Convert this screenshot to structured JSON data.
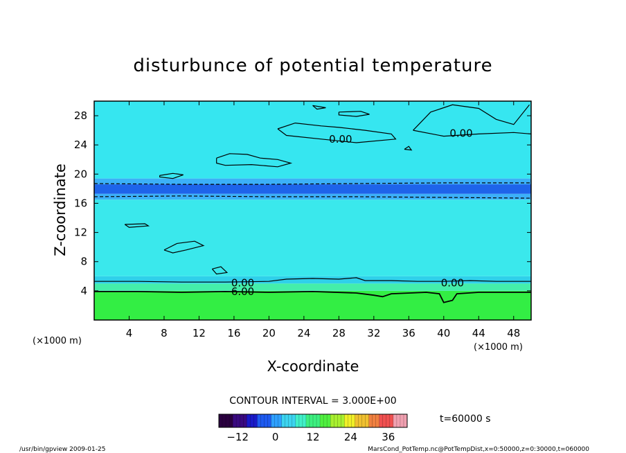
{
  "chart_data": {
    "type": "heatmap",
    "title": "disturbunce of potential temperature",
    "xlabel": "X-coordinate",
    "ylabel": "Z-coordinate",
    "x_unit": "(×1000 m)",
    "y_unit": "(×1000 m)",
    "xlim": [
      0,
      50
    ],
    "ylim": [
      0,
      30
    ],
    "x_ticks": [
      4,
      8,
      12,
      16,
      20,
      24,
      28,
      32,
      36,
      40,
      44,
      48
    ],
    "y_ticks": [
      4,
      8,
      12,
      16,
      20,
      24,
      28
    ],
    "contour_interval_text": "CONTOUR INTERVAL = 3.000E+00",
    "time_label": "t=60000 s",
    "colorbar": {
      "min": -18,
      "max": 42,
      "ticks": [
        -12,
        0,
        12,
        24,
        36
      ],
      "colors": [
        "#2a003f",
        "#3a0a80",
        "#1a1ac8",
        "#1e5af0",
        "#2ea0ff",
        "#3cd4f0",
        "#40f0c8",
        "#3cf080",
        "#50f040",
        "#a8f030",
        "#f0f028",
        "#f0c030",
        "#f08040",
        "#f05050",
        "#f0a0b0"
      ]
    },
    "field_layers": [
      {
        "z_from": 0,
        "z_to": 4,
        "color": "#33ee44"
      },
      {
        "z_from": 4,
        "z_to": 5,
        "color": "#44eeaa"
      },
      {
        "z_from": 5,
        "z_to": 6,
        "color": "#2fd0ea"
      },
      {
        "z_from": 6,
        "z_to": 16.5,
        "color": "#3ae8ec"
      },
      {
        "z_from": 16.5,
        "z_to": 17.3,
        "color": "#3cb0f8"
      },
      {
        "z_from": 17.3,
        "z_to": 18.6,
        "color": "#1e64ea"
      },
      {
        "z_from": 18.6,
        "z_to": 19.4,
        "color": "#3cb0f8"
      },
      {
        "z_from": 19.4,
        "z_to": 30,
        "color": "#36e6f0"
      }
    ],
    "contour_labels": [
      {
        "text": "0.00",
        "x": 28.2,
        "z": 24.8
      },
      {
        "text": "0.00",
        "x": 42.0,
        "z": 25.6
      },
      {
        "text": "0.00",
        "x": 17.0,
        "z": 5.1
      },
      {
        "text": "6.00",
        "x": 17.0,
        "z": 3.9
      },
      {
        "text": "0.00",
        "x": 41.0,
        "z": 5.1
      }
    ],
    "contours": [
      {
        "level": 0,
        "points": [
          [
            21,
            26.2
          ],
          [
            23,
            27
          ],
          [
            26,
            26.6
          ],
          [
            28,
            26.4
          ],
          [
            31,
            26
          ],
          [
            34,
            25.5
          ],
          [
            34.5,
            24.8
          ],
          [
            30,
            24.3
          ],
          [
            26,
            24.8
          ],
          [
            22,
            25.3
          ],
          [
            21,
            26.2
          ]
        ]
      },
      {
        "level": 0,
        "points": [
          [
            36.5,
            26
          ],
          [
            38.5,
            28.5
          ],
          [
            41,
            29.5
          ],
          [
            44,
            29
          ],
          [
            46,
            27.5
          ],
          [
            48,
            26.8
          ],
          [
            49.8,
            29.5
          ]
        ]
      },
      {
        "level": 0,
        "points": [
          [
            36.5,
            26
          ],
          [
            40,
            25.2
          ],
          [
            44,
            25.5
          ],
          [
            48,
            25.7
          ],
          [
            50,
            25.5
          ]
        ]
      },
      {
        "level": 0,
        "points": [
          [
            14,
            22.2
          ],
          [
            15.5,
            22.8
          ],
          [
            17.5,
            22.7
          ],
          [
            19,
            22.2
          ],
          [
            21,
            22
          ],
          [
            22.5,
            21.5
          ],
          [
            21,
            21
          ],
          [
            18,
            21.3
          ],
          [
            15,
            21.2
          ],
          [
            14,
            21.5
          ],
          [
            14,
            22.2
          ]
        ]
      },
      {
        "level": 0,
        "points": [
          [
            25,
            29.4
          ],
          [
            26.5,
            29.1
          ],
          [
            25.5,
            28.9
          ],
          [
            25,
            29.4
          ]
        ]
      },
      {
        "level": 0,
        "points": [
          [
            28,
            28.5
          ],
          [
            30.5,
            28.6
          ],
          [
            31.5,
            28.2
          ],
          [
            30,
            27.9
          ],
          [
            28,
            28.1
          ],
          [
            28,
            28.5
          ]
        ]
      },
      {
        "level": 0,
        "points": [
          [
            7.5,
            19.8
          ],
          [
            9,
            20.1
          ],
          [
            10.2,
            19.9
          ],
          [
            9,
            19.4
          ],
          [
            7.5,
            19.6
          ],
          [
            7.5,
            19.8
          ]
        ]
      },
      {
        "level": 0,
        "points": [
          [
            35.5,
            23.4
          ],
          [
            36,
            23.8
          ],
          [
            36.3,
            23.3
          ],
          [
            35.5,
            23.4
          ]
        ]
      },
      {
        "level": 0,
        "points": [
          [
            3.5,
            13.1
          ],
          [
            5.8,
            13.2
          ],
          [
            6.2,
            12.9
          ],
          [
            4,
            12.7
          ],
          [
            3.5,
            13.1
          ]
        ]
      },
      {
        "level": 0,
        "points": [
          [
            8,
            9.6
          ],
          [
            9.5,
            10.5
          ],
          [
            11.5,
            10.8
          ],
          [
            12.5,
            10.2
          ],
          [
            10.5,
            9.6
          ],
          [
            9,
            9.2
          ],
          [
            8,
            9.6
          ]
        ]
      },
      {
        "level": 0,
        "points": [
          [
            13.5,
            7
          ],
          [
            14.5,
            7.3
          ],
          [
            15.2,
            6.5
          ],
          [
            14,
            6.3
          ],
          [
            13.5,
            7
          ]
        ]
      },
      {
        "level": 0,
        "points": [
          [
            0,
            5.3
          ],
          [
            5,
            5.3
          ],
          [
            10,
            5.2
          ],
          [
            15,
            5.2
          ],
          [
            20,
            5.3
          ],
          [
            22,
            5.6
          ],
          [
            25,
            5.7
          ],
          [
            28,
            5.6
          ],
          [
            30,
            5.8
          ],
          [
            31,
            5.4
          ],
          [
            34,
            5.4
          ],
          [
            37,
            5.3
          ],
          [
            40,
            5.3
          ],
          [
            43,
            5.4
          ],
          [
            46,
            5.3
          ],
          [
            50,
            5.3
          ]
        ]
      },
      {
        "level": 6,
        "points": [
          [
            0,
            3.9
          ],
          [
            5,
            3.9
          ],
          [
            10,
            3.8
          ],
          [
            15,
            3.9
          ],
          [
            20,
            3.8
          ],
          [
            25,
            3.9
          ],
          [
            30,
            3.7
          ],
          [
            32,
            3.4
          ],
          [
            33,
            3.2
          ],
          [
            34,
            3.6
          ],
          [
            38,
            3.8
          ],
          [
            39.5,
            3.6
          ],
          [
            40,
            2.4
          ],
          [
            41,
            2.7
          ],
          [
            41.5,
            3.6
          ],
          [
            44,
            3.8
          ],
          [
            50,
            3.8
          ]
        ]
      },
      {
        "level": -3,
        "dashed": true,
        "points": [
          [
            0,
            18.7
          ],
          [
            10,
            18.6
          ],
          [
            20,
            18.6
          ],
          [
            30,
            18.7
          ],
          [
            40,
            18.8
          ],
          [
            50,
            18.8
          ]
        ]
      },
      {
        "level": -3,
        "dashed": true,
        "points": [
          [
            0,
            16.9
          ],
          [
            10,
            17.0
          ],
          [
            20,
            16.9
          ],
          [
            30,
            16.9
          ],
          [
            40,
            16.8
          ],
          [
            50,
            16.7
          ]
        ]
      }
    ],
    "footer_left": "/usr/bin/gpview   2009-01-25",
    "footer_right": "MarsCond_PotTemp.nc@PotTempDist,x=0:50000,z=0:30000,t=060000"
  }
}
